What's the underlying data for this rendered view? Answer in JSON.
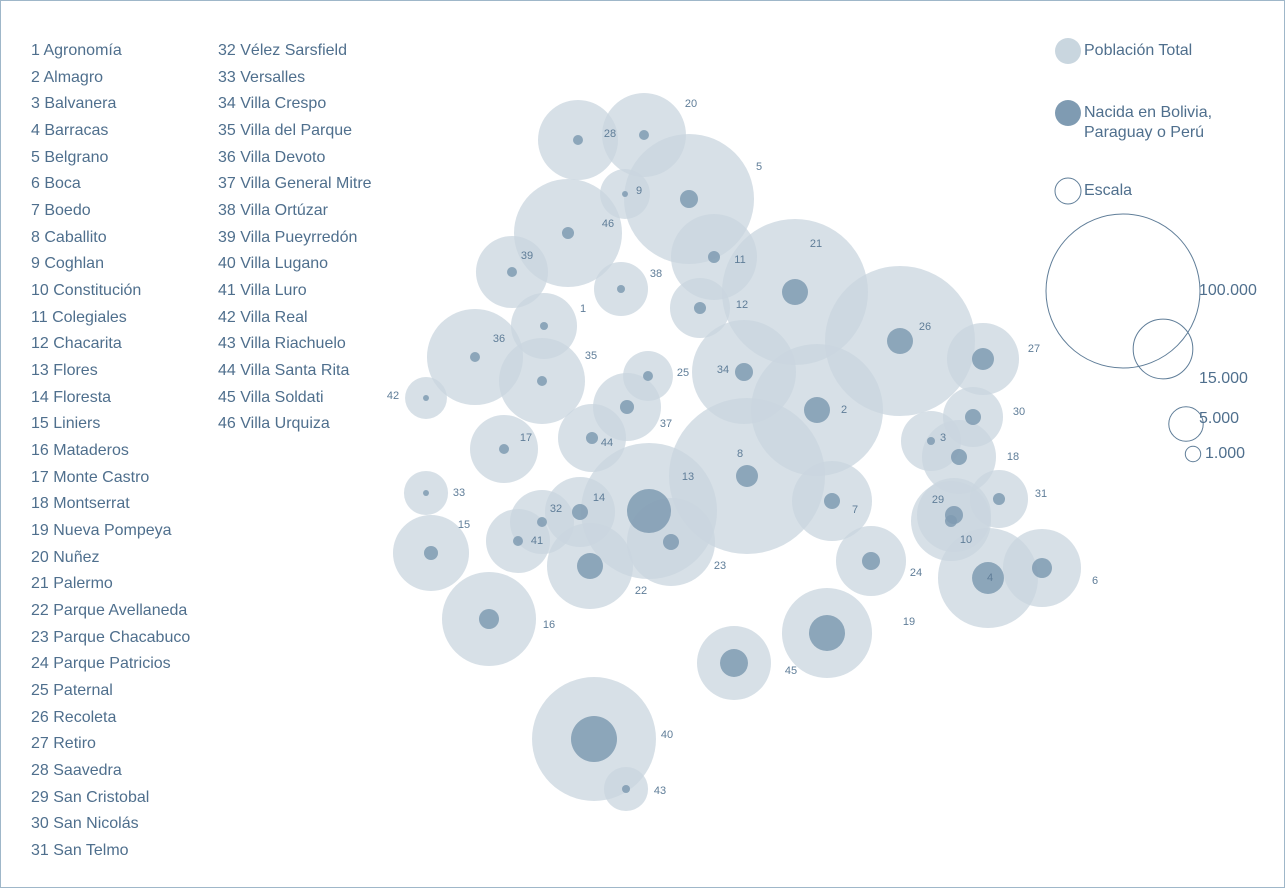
{
  "chart_data": {
    "type": "bubble-map",
    "numbers": [
      1,
      2,
      3,
      4,
      5,
      6,
      7,
      8,
      9,
      10,
      11,
      12,
      13,
      14,
      15,
      16,
      17,
      18,
      19,
      20,
      21,
      22,
      23,
      24,
      25,
      26,
      27,
      28,
      29,
      30,
      31,
      32,
      33,
      34,
      35,
      36,
      37,
      38,
      39,
      40,
      41,
      42,
      43,
      44,
      45,
      46
    ],
    "categories": [
      "Agronomía",
      "Almagro",
      "Balvanera",
      "Barracas",
      "Belgrano",
      "Boca",
      "Boedo",
      "Caballito",
      "Coghlan",
      "Constitución",
      "Colegiales",
      "Chacarita",
      "Flores",
      "Floresta",
      "Liniers",
      "Mataderos",
      "Monte Castro",
      "Montserrat",
      "Nueva Pompeya",
      "Nuñez",
      "Palermo",
      "Parque Avellaneda",
      "Parque Chacabuco",
      "Parque Patricios",
      "Paternal",
      "Recoleta",
      "Retiro",
      "Saavedra",
      "San Cristobal",
      "San Nicolás",
      "San Telmo",
      "Vélez Sarsfield",
      "Versalles",
      "Villa Crespo",
      "Villa del Parque",
      "Villa Devoto",
      "Villa General Mitre",
      "Villa Ortúzar",
      "Villa Pueyrredón",
      "Villa Lugano",
      "Villa Luro",
      "Villa Real",
      "Villa Riachuelo",
      "Villa Santa Rita",
      "Villa Soldati",
      "Villa Urquiza"
    ],
    "series": [
      {
        "name": "Población Total",
        "color": "#c9d6df",
        "values": [
          18400,
          73500,
          15200,
          42200,
          71300,
          25700,
          27000,
          102600,
          10500,
          27000,
          31200,
          15200,
          78000,
          20700,
          24400,
          37300,
          19500,
          23100,
          34200,
          29700,
          89900,
          31200,
          32700,
          20700,
          10500,
          94900,
          21900,
          27000,
          23100,
          15200,
          14200,
          17300,
          8200,
          45600,
          31200,
          38900,
          19500,
          12300,
          21900,
          64800,
          17300,
          7400,
          8200,
          19500,
          23100,
          49200
        ]
      },
      {
        "name": "Nacida en Bolivia, Paraguay o Perú",
        "color": "#7f9bb2",
        "values": [
          270,
          2850,
          270,
          4300,
          1370,
          1690,
          1080,
          2040,
          150,
          610,
          610,
          610,
          8170,
          1080,
          830,
          1690,
          420,
          1080,
          5470,
          420,
          2850,
          2850,
          1080,
          1370,
          420,
          2850,
          2040,
          420,
          1370,
          1080,
          610,
          420,
          150,
          1370,
          420,
          420,
          830,
          270,
          420,
          8920,
          420,
          150,
          270,
          610,
          3300,
          610
        ]
      }
    ],
    "scale_title": "Escala",
    "scale": [
      {
        "value": 100000,
        "label": "100.000"
      },
      {
        "value": 15000,
        "label": "15.000"
      },
      {
        "value": 5000,
        "label": "5.000"
      },
      {
        "value": 1000,
        "label": "1.000"
      }
    ]
  }
}
